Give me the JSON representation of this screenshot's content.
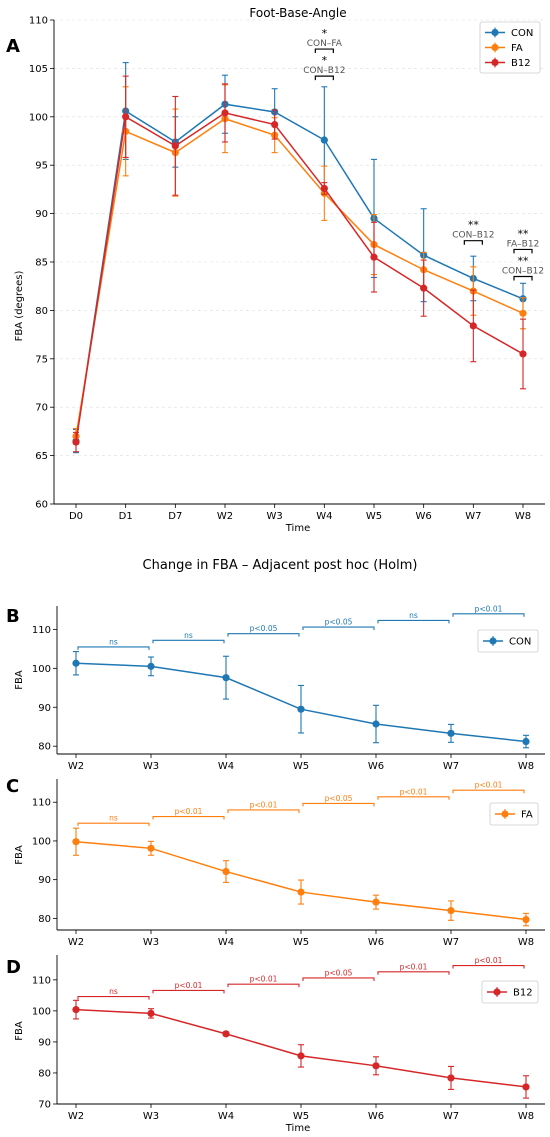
{
  "colors": {
    "CON": "#1f77b4",
    "FA": "#ff7f0e",
    "B12": "#d62728",
    "axis": "#000000",
    "grid": "#dddddd",
    "bracket_black": "#000000",
    "bracket_label": "#555555"
  },
  "chart_data": [
    {
      "type": "line",
      "panel": "A",
      "title": "Foot-Base-Angle",
      "xlabel": "Time",
      "ylabel": "FBA (degrees)",
      "ylim": [
        60,
        110
      ],
      "yticks": [
        60,
        65,
        70,
        75,
        80,
        85,
        90,
        95,
        100,
        105,
        110
      ],
      "grid": "y-dashed",
      "legend": "top-right",
      "categories": [
        "D0",
        "D1",
        "D7",
        "W2",
        "W3",
        "W4",
        "W5",
        "W6",
        "W7",
        "W8"
      ],
      "series": [
        {
          "name": "CON",
          "color": "#1f77b4",
          "values": [
            66.5,
            100.6,
            97.4,
            101.3,
            100.5,
            97.6,
            89.5,
            85.7,
            83.3,
            81.2
          ],
          "errors": [
            1.2,
            5.0,
            2.6,
            3.0,
            2.4,
            5.5,
            6.1,
            4.8,
            2.3,
            1.6
          ]
        },
        {
          "name": "FA",
          "color": "#ff7f0e",
          "values": [
            67.0,
            98.5,
            96.3,
            99.8,
            98.1,
            92.1,
            86.8,
            84.2,
            82.0,
            79.7
          ],
          "errors": [
            0.8,
            4.6,
            4.5,
            3.5,
            1.8,
            2.8,
            3.1,
            1.8,
            2.5,
            1.6
          ]
        },
        {
          "name": "B12",
          "color": "#d62728",
          "values": [
            66.4,
            100.0,
            97.0,
            100.4,
            99.2,
            92.6,
            85.5,
            82.3,
            78.4,
            75.5
          ],
          "errors": [
            1.0,
            4.2,
            5.1,
            3.0,
            1.5,
            0.6,
            3.6,
            2.9,
            3.7,
            3.6
          ]
        }
      ],
      "annotations": [
        {
          "x": "W4",
          "y": 107.0,
          "stars": "*",
          "label": "CON–FA",
          "color": "#000000"
        },
        {
          "x": "W4",
          "y": 104.2,
          "stars": "*",
          "label": "CON–B12",
          "color": "#000000"
        },
        {
          "x": "W7",
          "y": 87.2,
          "stars": "**",
          "label": "CON–B12",
          "color": "#000000"
        },
        {
          "x": "W8",
          "y": 86.3,
          "stars": "**",
          "label": "FA–B12",
          "color": "#000000"
        },
        {
          "x": "W8",
          "y": 83.5,
          "stars": "**",
          "label": "CON–B12",
          "color": "#000000"
        }
      ]
    },
    {
      "type": "line",
      "panel": "B",
      "title": "Change in FBA – Adjacent post hoc (Holm)",
      "xlabel": "",
      "ylabel": "FBA",
      "ylim": [
        78,
        116
      ],
      "yticks": [
        80,
        90,
        100,
        110
      ],
      "legend": "right",
      "categories": [
        "W2",
        "W3",
        "W4",
        "W5",
        "W6",
        "W7",
        "W8"
      ],
      "series": [
        {
          "name": "CON",
          "color": "#1f77b4",
          "values": [
            101.3,
            100.5,
            97.6,
            89.5,
            85.7,
            83.3,
            81.2
          ],
          "errors": [
            3.0,
            2.4,
            5.5,
            6.1,
            4.8,
            2.3,
            1.6
          ]
        }
      ],
      "comparisons": [
        {
          "from": "W2",
          "to": "W3",
          "label": "ns",
          "y": 105.5
        },
        {
          "from": "W3",
          "to": "W4",
          "label": "ns",
          "y": 107.2
        },
        {
          "from": "W4",
          "to": "W5",
          "label": "p<0.05",
          "y": 108.9
        },
        {
          "from": "W5",
          "to": "W6",
          "label": "p<0.05",
          "y": 110.6
        },
        {
          "from": "W6",
          "to": "W7",
          "label": "ns",
          "y": 112.3
        },
        {
          "from": "W7",
          "to": "W8",
          "label": "p<0.01",
          "y": 114.0
        }
      ]
    },
    {
      "type": "line",
      "panel": "C",
      "title": "",
      "xlabel": "",
      "ylabel": "FBA",
      "ylim": [
        77,
        116
      ],
      "yticks": [
        80,
        90,
        100,
        110
      ],
      "legend": "right",
      "categories": [
        "W2",
        "W3",
        "W4",
        "W5",
        "W6",
        "W7",
        "W8"
      ],
      "series": [
        {
          "name": "FA",
          "color": "#ff7f0e",
          "values": [
            99.8,
            98.1,
            92.1,
            86.8,
            84.2,
            82.0,
            79.7
          ],
          "errors": [
            3.5,
            1.8,
            2.8,
            3.1,
            1.8,
            2.5,
            1.6
          ]
        }
      ],
      "comparisons": [
        {
          "from": "W2",
          "to": "W3",
          "label": "ns",
          "y": 104.6
        },
        {
          "from": "W3",
          "to": "W4",
          "label": "p<0.01",
          "y": 106.3
        },
        {
          "from": "W4",
          "to": "W5",
          "label": "p<0.01",
          "y": 108.0
        },
        {
          "from": "W5",
          "to": "W6",
          "label": "p<0.05",
          "y": 109.7
        },
        {
          "from": "W6",
          "to": "W7",
          "label": "p<0.01",
          "y": 111.4
        },
        {
          "from": "W7",
          "to": "W8",
          "label": "p<0.01",
          "y": 113.1
        }
      ]
    },
    {
      "type": "line",
      "panel": "D",
      "title": "",
      "xlabel": "Time",
      "ylabel": "FBA",
      "ylim": [
        70,
        118
      ],
      "yticks": [
        70,
        80,
        90,
        100,
        110
      ],
      "legend": "right",
      "categories": [
        "W2",
        "W3",
        "W4",
        "W5",
        "W6",
        "W7",
        "W8"
      ],
      "series": [
        {
          "name": "B12",
          "color": "#d62728",
          "values": [
            100.4,
            99.2,
            92.6,
            85.5,
            82.3,
            78.4,
            75.5
          ],
          "errors": [
            3.0,
            1.5,
            0.6,
            3.6,
            2.9,
            3.7,
            3.6
          ]
        }
      ],
      "comparisons": [
        {
          "from": "W2",
          "to": "W3",
          "label": "ns",
          "y": 104.6
        },
        {
          "from": "W3",
          "to": "W4",
          "label": "p<0.01",
          "y": 106.6
        },
        {
          "from": "W4",
          "to": "W5",
          "label": "p<0.01",
          "y": 108.6
        },
        {
          "from": "W5",
          "to": "W6",
          "label": "p<0.05",
          "y": 110.6
        },
        {
          "from": "W6",
          "to": "W7",
          "label": "p<0.01",
          "y": 112.6
        },
        {
          "from": "W7",
          "to": "W8",
          "label": "p<0.01",
          "y": 114.6
        }
      ]
    }
  ]
}
